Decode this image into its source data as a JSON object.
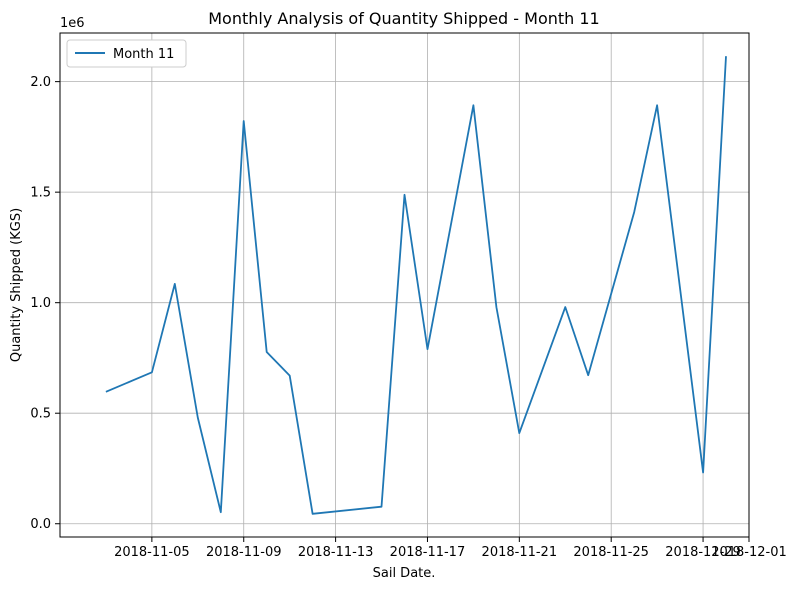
{
  "chart_data": {
    "type": "line",
    "title": "Monthly Analysis of Quantity Shipped - Month 11",
    "xlabel": "Sail Date.",
    "ylabel": "Quantity Shipped (KGS)",
    "y_offset_label": "1e6",
    "y_scale_factor": 1000000,
    "xlim": [
      "2018-11-01",
      "2018-12-01"
    ],
    "ylim": [
      -60000,
      2220000
    ],
    "grid": true,
    "legend_position": "top-left",
    "x_ticks": [
      {
        "date": "2018-11-05",
        "label": "2018-11-05"
      },
      {
        "date": "2018-11-09",
        "label": "2018-11-09"
      },
      {
        "date": "2018-11-13",
        "label": "2018-11-13"
      },
      {
        "date": "2018-11-17",
        "label": "2018-11-17"
      },
      {
        "date": "2018-11-21",
        "label": "2018-11-21"
      },
      {
        "date": "2018-11-25",
        "label": "2018-11-25"
      },
      {
        "date": "2018-11-29",
        "label": "2018-11-29"
      },
      {
        "date": "2018-12-01",
        "label": "2018-12-01"
      }
    ],
    "y_ticks": [
      {
        "value": 0,
        "label": "0.0"
      },
      {
        "value": 500000,
        "label": "0.5"
      },
      {
        "value": 1000000,
        "label": "1.0"
      },
      {
        "value": 1500000,
        "label": "1.5"
      },
      {
        "value": 2000000,
        "label": "2.0"
      }
    ],
    "series": [
      {
        "name": "Month 11",
        "color": "#1f77b4",
        "x": [
          "2018-11-03",
          "2018-11-05",
          "2018-11-06",
          "2018-11-07",
          "2018-11-08",
          "2018-11-09",
          "2018-11-10",
          "2018-11-11",
          "2018-11-12",
          "2018-11-15",
          "2018-11-16",
          "2018-11-17",
          "2018-11-19",
          "2018-11-20",
          "2018-11-21",
          "2018-11-23",
          "2018-11-24",
          "2018-11-26",
          "2018-11-27",
          "2018-11-29",
          "2018-11-30"
        ],
        "y": [
          597000,
          685000,
          1085000,
          480000,
          52000,
          1822000,
          777000,
          670000,
          45000,
          77000,
          1488000,
          790000,
          1893000,
          980000,
          410000,
          980000,
          672000,
          1410000,
          1893000,
          232000,
          2115000
        ]
      }
    ]
  }
}
